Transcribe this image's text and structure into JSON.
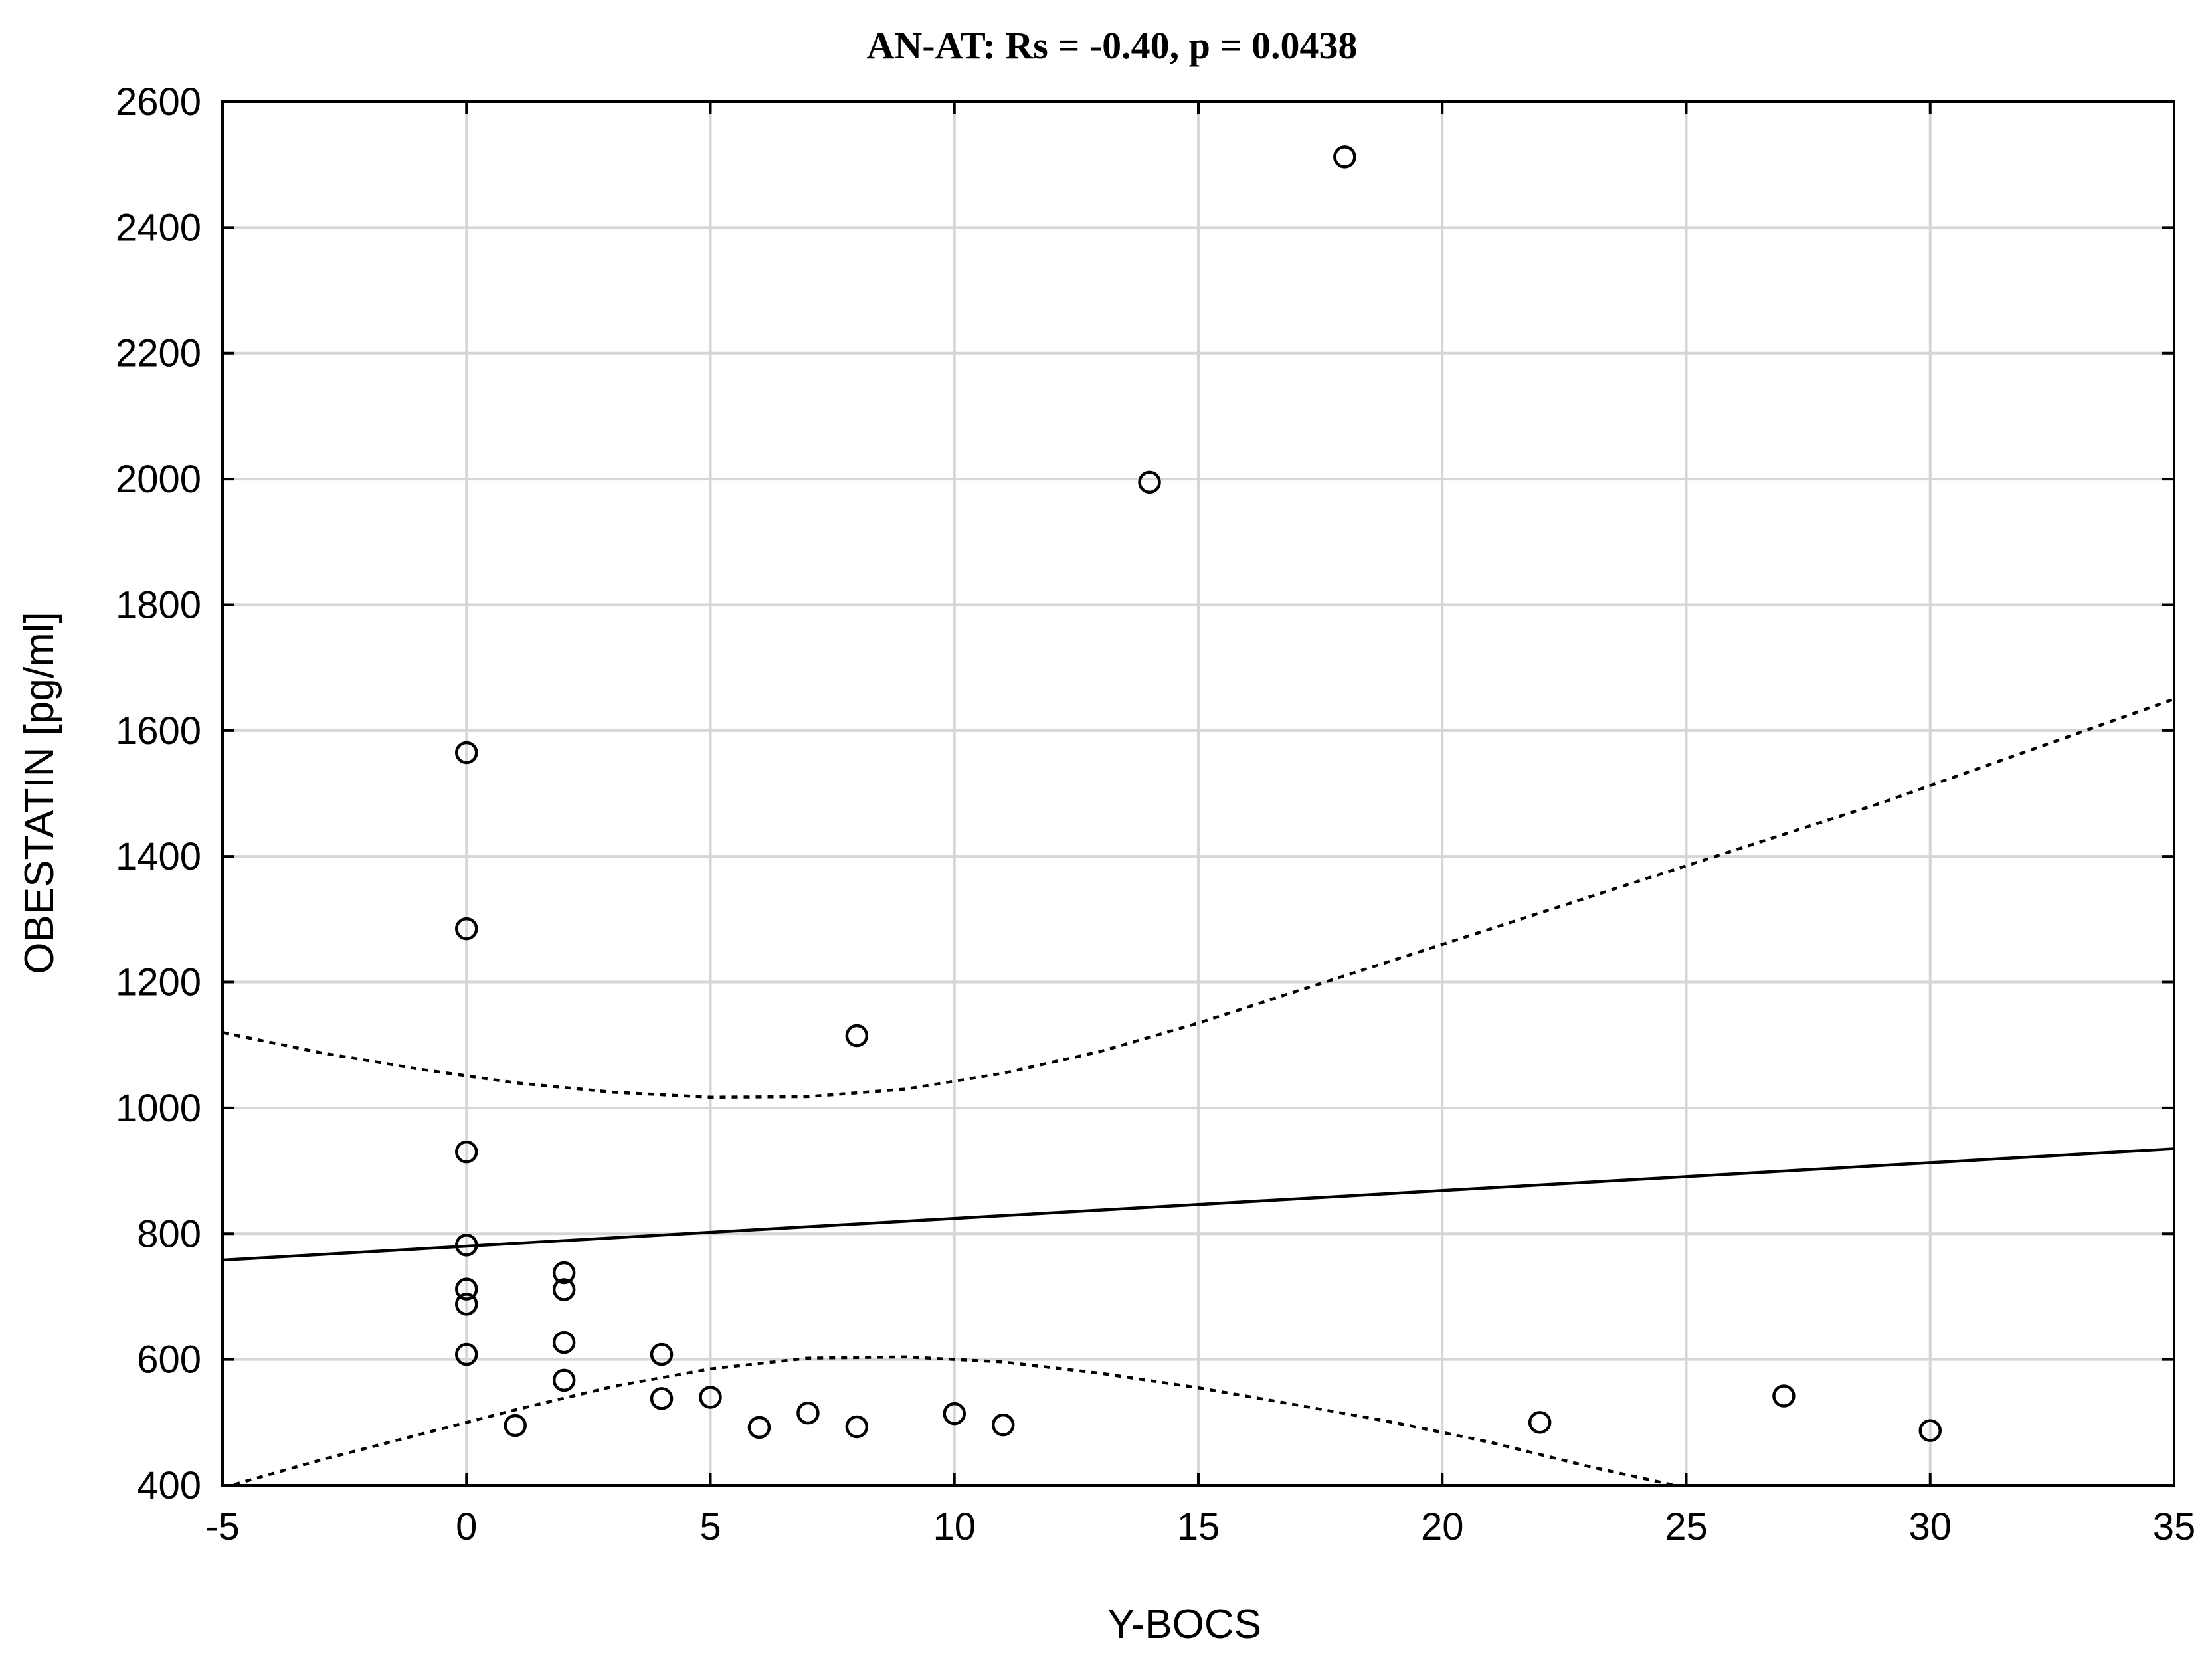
{
  "chart_data": {
    "type": "scatter",
    "title": "AN-AT: Rs = -0.40, p = 0.0438",
    "xlabel": "Y-BOCS",
    "ylabel": "OBESTATIN [pg/ml]",
    "xlim": [
      -5,
      35
    ],
    "ylim": [
      400,
      2600
    ],
    "xticks": [
      "-5",
      "0",
      "5",
      "10",
      "15",
      "20",
      "25",
      "30",
      "35"
    ],
    "yticks": [
      "400",
      "600",
      "800",
      "1000",
      "1200",
      "1400",
      "1600",
      "1800",
      "2000",
      "2200",
      "2400",
      "2600"
    ],
    "grid": true,
    "points": [
      {
        "x": 0,
        "y": 1565
      },
      {
        "x": 0,
        "y": 1285
      },
      {
        "x": 0,
        "y": 930
      },
      {
        "x": 0,
        "y": 782
      },
      {
        "x": 0,
        "y": 712
      },
      {
        "x": 0,
        "y": 688
      },
      {
        "x": 0,
        "y": 608
      },
      {
        "x": 1,
        "y": 495
      },
      {
        "x": 2,
        "y": 738
      },
      {
        "x": 2,
        "y": 711
      },
      {
        "x": 2,
        "y": 627
      },
      {
        "x": 2,
        "y": 567
      },
      {
        "x": 4,
        "y": 608
      },
      {
        "x": 4,
        "y": 538
      },
      {
        "x": 5,
        "y": 540
      },
      {
        "x": 6,
        "y": 492
      },
      {
        "x": 7,
        "y": 515
      },
      {
        "x": 8,
        "y": 1115
      },
      {
        "x": 8,
        "y": 493
      },
      {
        "x": 10,
        "y": 514
      },
      {
        "x": 11,
        "y": 496
      },
      {
        "x": 14,
        "y": 1995
      },
      {
        "x": 18,
        "y": 2512
      },
      {
        "x": 22,
        "y": 500
      },
      {
        "x": 27,
        "y": 542
      },
      {
        "x": 30,
        "y": 487
      }
    ],
    "fit_line": {
      "x": [
        -5,
        35
      ],
      "y": [
        758,
        935
      ]
    },
    "ci_upper": {
      "x": [
        -5,
        -3,
        -1,
        1,
        3,
        5,
        7,
        9,
        11,
        13,
        15,
        17,
        19,
        21,
        23,
        25,
        27,
        29,
        31,
        33,
        35
      ],
      "y": [
        1120,
        1088,
        1062,
        1040,
        1025,
        1017,
        1018,
        1030,
        1055,
        1090,
        1135,
        1185,
        1235,
        1285,
        1335,
        1385,
        1435,
        1485,
        1540,
        1595,
        1650
      ]
    },
    "ci_lower": {
      "x": [
        -5,
        -3,
        -1,
        1,
        3,
        5,
        7,
        9,
        11,
        13,
        15,
        17,
        19,
        21,
        23,
        25
      ],
      "y": [
        396,
        440,
        480,
        520,
        557,
        585,
        602,
        604,
        596,
        578,
        555,
        528,
        500,
        468,
        430,
        396
      ]
    }
  }
}
